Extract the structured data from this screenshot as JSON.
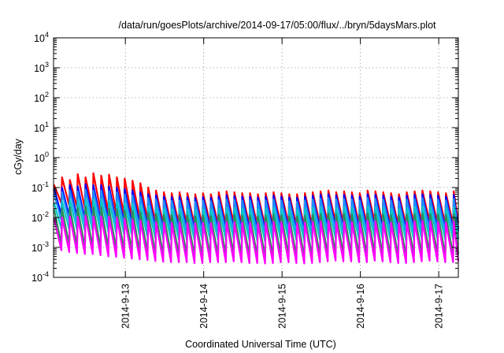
{
  "chart_data": {
    "type": "line",
    "title": "/data/run/goesPlots/archive/2014-09-17/05:00/flux/../bryn/5daysMars.plot",
    "xlabel": "Coordinated Universal Time (UTC)",
    "ylabel": "cGy/day",
    "yscale": "log",
    "ylim": [
      0.0001,
      10000
    ],
    "xlim": [
      "2014-09-12 02:00",
      "2014-09-17 06:00"
    ],
    "yticks": [
      {
        "base": "10",
        "exp": "-4"
      },
      {
        "base": "10",
        "exp": "-3"
      },
      {
        "base": "10",
        "exp": "-2"
      },
      {
        "base": "10",
        "exp": "-1"
      },
      {
        "base": "10",
        "exp": "0"
      },
      {
        "base": "10",
        "exp": "1"
      },
      {
        "base": "10",
        "exp": "2"
      },
      {
        "base": "10",
        "exp": "3"
      },
      {
        "base": "10",
        "exp": "4"
      }
    ],
    "xticks": [
      "2014-9-13",
      "2014-9-14",
      "2014-9-15",
      "2014-9-16",
      "2014-9-17"
    ],
    "grid": true,
    "legend": "none",
    "cycle_hours": 2.4,
    "series": [
      {
        "color": "#ff0000",
        "peaks": [
          0.12,
          0.22,
          0.18,
          0.28,
          0.22,
          0.3,
          0.25,
          0.27,
          0.22,
          0.2,
          0.17,
          0.14,
          0.1,
          0.08,
          0.07,
          0.065,
          0.07,
          0.065,
          0.06,
          0.065,
          0.06,
          0.07,
          0.075,
          0.07,
          0.065,
          0.065,
          0.06,
          0.065,
          0.07,
          0.065,
          0.06,
          0.06,
          0.065,
          0.07,
          0.075,
          0.08,
          0.07,
          0.075,
          0.07,
          0.065,
          0.08,
          0.075,
          0.07,
          0.065,
          0.06,
          0.07,
          0.075,
          0.08,
          0.075,
          0.07,
          0.065,
          0.075
        ],
        "troughs": [
          0.03,
          0.025,
          0.022,
          0.02,
          0.018,
          0.017,
          0.015,
          0.014,
          0.012,
          0.01,
          0.009,
          0.008,
          0.007,
          0.006,
          0.006,
          0.006,
          0.006,
          0.0055,
          0.0055,
          0.006,
          0.006,
          0.006,
          0.0065,
          0.006,
          0.0055,
          0.0055,
          0.005,
          0.0055,
          0.006,
          0.006,
          0.0055,
          0.005,
          0.0055,
          0.006,
          0.0065,
          0.007,
          0.0065,
          0.0065,
          0.006,
          0.006,
          0.007,
          0.0065,
          0.006,
          0.0055,
          0.0055,
          0.006,
          0.0065,
          0.007,
          0.0065,
          0.006,
          0.006,
          0.0065
        ]
      },
      {
        "color": "#0000ff",
        "peaks": [
          0.09,
          0.1,
          0.12,
          0.11,
          0.13,
          0.12,
          0.12,
          0.11,
          0.1,
          0.09,
          0.08,
          0.07,
          0.06,
          0.055,
          0.05,
          0.048,
          0.05,
          0.048,
          0.045,
          0.048,
          0.046,
          0.05,
          0.055,
          0.052,
          0.05,
          0.05,
          0.047,
          0.05,
          0.054,
          0.05,
          0.047,
          0.046,
          0.05,
          0.054,
          0.058,
          0.06,
          0.055,
          0.057,
          0.054,
          0.05,
          0.06,
          0.057,
          0.054,
          0.05,
          0.047,
          0.054,
          0.057,
          0.06,
          0.057,
          0.054,
          0.05,
          0.057
        ],
        "troughs": [
          0.012,
          0.011,
          0.01,
          0.009,
          0.009,
          0.008,
          0.008,
          0.007,
          0.0065,
          0.006,
          0.0055,
          0.005,
          0.0045,
          0.004,
          0.004,
          0.004,
          0.004,
          0.0038,
          0.0038,
          0.004,
          0.004,
          0.004,
          0.0042,
          0.004,
          0.0038,
          0.0038,
          0.0036,
          0.0038,
          0.004,
          0.004,
          0.0038,
          0.0036,
          0.0038,
          0.004,
          0.0042,
          0.0045,
          0.0042,
          0.0042,
          0.004,
          0.004,
          0.0045,
          0.0042,
          0.004,
          0.0038,
          0.0038,
          0.004,
          0.0042,
          0.0045,
          0.0042,
          0.004,
          0.004,
          0.0042
        ]
      },
      {
        "color": "#1e90ff",
        "peaks": [
          0.06,
          0.07,
          0.08,
          0.075,
          0.085,
          0.08,
          0.08,
          0.075,
          0.07,
          0.06,
          0.055,
          0.05,
          0.045,
          0.04,
          0.037,
          0.036,
          0.037,
          0.036,
          0.034,
          0.036,
          0.035,
          0.038,
          0.04,
          0.039,
          0.037,
          0.037,
          0.035,
          0.037,
          0.04,
          0.037,
          0.035,
          0.034,
          0.037,
          0.04,
          0.043,
          0.045,
          0.041,
          0.042,
          0.04,
          0.037,
          0.045,
          0.042,
          0.04,
          0.037,
          0.035,
          0.04,
          0.042,
          0.045,
          0.042,
          0.04,
          0.037,
          0.042
        ],
        "troughs": [
          0.008,
          0.0075,
          0.007,
          0.0065,
          0.0065,
          0.006,
          0.006,
          0.0055,
          0.005,
          0.0045,
          0.0042,
          0.004,
          0.0036,
          0.0033,
          0.0032,
          0.0032,
          0.0032,
          0.003,
          0.003,
          0.0032,
          0.0032,
          0.0032,
          0.0034,
          0.0032,
          0.003,
          0.003,
          0.0029,
          0.003,
          0.0032,
          0.0032,
          0.003,
          0.0029,
          0.003,
          0.0032,
          0.0034,
          0.0036,
          0.0034,
          0.0034,
          0.0032,
          0.0032,
          0.0036,
          0.0034,
          0.0032,
          0.003,
          0.003,
          0.0032,
          0.0034,
          0.0036,
          0.0034,
          0.0032,
          0.0032,
          0.0034
        ]
      },
      {
        "color": "#00c8c8",
        "peaks": [
          0.03,
          0.035,
          0.04,
          0.038,
          0.042,
          0.04,
          0.04,
          0.037,
          0.034,
          0.03,
          0.028,
          0.025,
          0.023,
          0.021,
          0.02,
          0.019,
          0.02,
          0.019,
          0.018,
          0.019,
          0.0185,
          0.02,
          0.021,
          0.0205,
          0.02,
          0.02,
          0.019,
          0.02,
          0.021,
          0.02,
          0.019,
          0.0185,
          0.02,
          0.021,
          0.022,
          0.023,
          0.021,
          0.022,
          0.021,
          0.02,
          0.023,
          0.022,
          0.021,
          0.02,
          0.019,
          0.021,
          0.022,
          0.023,
          0.022,
          0.021,
          0.02,
          0.022
        ],
        "troughs": [
          0.0042,
          0.004,
          0.0038,
          0.0035,
          0.0035,
          0.0033,
          0.0033,
          0.003,
          0.0028,
          0.0026,
          0.0024,
          0.0022,
          0.002,
          0.0019,
          0.0018,
          0.0018,
          0.0018,
          0.0017,
          0.0017,
          0.0018,
          0.0018,
          0.0018,
          0.0019,
          0.0018,
          0.0017,
          0.0017,
          0.0016,
          0.0017,
          0.0018,
          0.0018,
          0.0017,
          0.0016,
          0.0017,
          0.0018,
          0.0019,
          0.002,
          0.0019,
          0.0019,
          0.0018,
          0.0018,
          0.002,
          0.0019,
          0.0018,
          0.0017,
          0.0017,
          0.0018,
          0.0019,
          0.002,
          0.0019,
          0.0018,
          0.0018,
          0.0019
        ]
      },
      {
        "color": "#2e8b57",
        "peaks": [
          0.018,
          0.02,
          0.022,
          0.021,
          0.023,
          0.022,
          0.022,
          0.02,
          0.019,
          0.017,
          0.016,
          0.015,
          0.014,
          0.013,
          0.012,
          0.012,
          0.012,
          0.0115,
          0.011,
          0.0115,
          0.011,
          0.012,
          0.0125,
          0.012,
          0.0115,
          0.0115,
          0.011,
          0.0115,
          0.0125,
          0.012,
          0.011,
          0.011,
          0.0115,
          0.0125,
          0.013,
          0.0135,
          0.0125,
          0.013,
          0.0125,
          0.012,
          0.0135,
          0.013,
          0.0125,
          0.012,
          0.0115,
          0.0125,
          0.013,
          0.0135,
          0.013,
          0.0125,
          0.012,
          0.013
        ],
        "troughs": [
          0.0013,
          0.0012,
          0.0011,
          0.001,
          0.001,
          0.00095,
          0.0009,
          0.00085,
          0.0008,
          0.00075,
          0.0007,
          0.00065,
          0.0006,
          0.00055,
          0.00055,
          0.00055,
          0.00055,
          0.0005,
          0.0005,
          0.00055,
          0.00055,
          0.00055,
          0.0006,
          0.00055,
          0.0005,
          0.0005,
          0.00048,
          0.0005,
          0.00055,
          0.00055,
          0.0005,
          0.00048,
          0.0005,
          0.00055,
          0.0006,
          0.00065,
          0.0006,
          0.0006,
          0.00055,
          0.00055,
          0.00065,
          0.0006,
          0.00055,
          0.0005,
          0.0005,
          0.00055,
          0.0006,
          0.00065,
          0.0006,
          0.00055,
          0.00055,
          0.0006
        ]
      },
      {
        "color": "#ff00ff",
        "peaks": [
          0.009,
          0.01,
          0.011,
          0.0105,
          0.0115,
          0.011,
          0.011,
          0.0105,
          0.01,
          0.009,
          0.0085,
          0.008,
          0.0075,
          0.007,
          0.0068,
          0.0066,
          0.0068,
          0.0066,
          0.0064,
          0.0066,
          0.0065,
          0.007,
          0.0072,
          0.007,
          0.0068,
          0.0068,
          0.0064,
          0.0068,
          0.0072,
          0.007,
          0.0066,
          0.0064,
          0.0068,
          0.0072,
          0.0075,
          0.0078,
          0.0072,
          0.0075,
          0.0072,
          0.0068,
          0.0078,
          0.0075,
          0.0072,
          0.0068,
          0.0066,
          0.0072,
          0.0075,
          0.0078,
          0.0075,
          0.0072,
          0.0068,
          0.0075
        ],
        "troughs": [
          0.0008,
          0.0007,
          0.00065,
          0.0006,
          0.0006,
          0.00055,
          0.0005,
          0.00048,
          0.00045,
          0.00042,
          0.0004,
          0.00038,
          0.00035,
          0.00033,
          0.00032,
          0.00032,
          0.00032,
          0.0003,
          0.0003,
          0.00032,
          0.00032,
          0.00032,
          0.00034,
          0.00032,
          0.0003,
          0.0003,
          0.00029,
          0.0003,
          0.00032,
          0.00032,
          0.0003,
          0.00029,
          0.0003,
          0.00032,
          0.00034,
          0.00036,
          0.00034,
          0.00034,
          0.00032,
          0.00032,
          0.00036,
          0.00034,
          0.00032,
          0.0003,
          0.0003,
          0.00032,
          0.00034,
          0.00036,
          0.00034,
          0.00032,
          0.00032,
          0.00034
        ]
      }
    ]
  }
}
